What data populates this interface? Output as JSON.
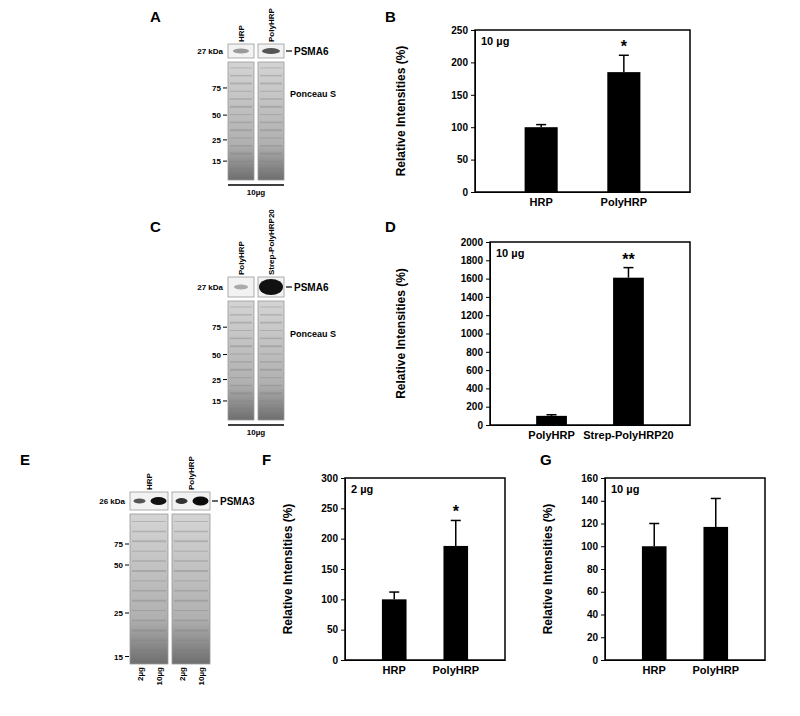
{
  "chart_data": [
    {
      "type": "bar",
      "panel": "B",
      "y_label": "Relative Intensities (%)",
      "categories": [
        "HRP",
        "PolyHRP"
      ],
      "values": [
        100,
        185
      ],
      "error": [
        4,
        26
      ],
      "color": "#000000",
      "ylim": [
        0,
        250
      ],
      "yticks": [
        0,
        50,
        100,
        150,
        200,
        250
      ],
      "annotations": [
        {
          "text": "10 µg"
        },
        {
          "text": "*",
          "x": "PolyHRP"
        }
      ]
    },
    {
      "type": "bar",
      "panel": "D",
      "y_label": "Relative Intensities (%)",
      "categories": [
        "PolyHRP",
        "Strep-PolyHRP20"
      ],
      "values": [
        100,
        1610
      ],
      "error": [
        12,
        110
      ],
      "color": "#000000",
      "ylim": [
        0,
        2000
      ],
      "yticks": [
        0,
        200,
        400,
        600,
        800,
        1000,
        1200,
        1400,
        1600,
        1800,
        2000
      ],
      "annotations": [
        {
          "text": "10 µg"
        },
        {
          "text": "**",
          "x": "Strep-PolyHRP20"
        }
      ]
    },
    {
      "type": "bar",
      "panel": "F",
      "y_label": "Relative Intensities (%)",
      "categories": [
        "HRP",
        "PolyHRP"
      ],
      "values": [
        100,
        188
      ],
      "error": [
        12,
        42
      ],
      "color": "#000000",
      "ylim": [
        0,
        300
      ],
      "yticks": [
        0,
        50,
        100,
        150,
        200,
        250,
        300
      ],
      "annotations": [
        {
          "text": "2 µg"
        },
        {
          "text": "*",
          "x": "PolyHRP"
        }
      ]
    },
    {
      "type": "bar",
      "panel": "G",
      "y_label": "Relative Intensities (%)",
      "categories": [
        "HRP",
        "PolyHRP"
      ],
      "values": [
        100,
        117
      ],
      "error": [
        20,
        25
      ],
      "color": "#000000",
      "ylim": [
        0,
        160
      ],
      "yticks": [
        0,
        20,
        40,
        60,
        80,
        100,
        120,
        140,
        160
      ],
      "annotations": [
        {
          "text": "10 µg"
        }
      ]
    }
  ],
  "blots": [
    {
      "panel": "A",
      "lanes": [
        {
          "label": "HRP"
        },
        {
          "label": "PolyHRP"
        }
      ],
      "marker_size": "27 kDa",
      "protein": "PSMA6",
      "ladder": [
        75,
        50,
        25,
        15
      ],
      "stain": "Ponceau S",
      "load": "10µg"
    },
    {
      "panel": "C",
      "lanes": [
        {
          "label": "PolyHRP"
        },
        {
          "label": "Strep-PolyHRP20"
        }
      ],
      "marker_size": "27 kDa",
      "protein": "PSMA6",
      "ladder": [
        75,
        50,
        25,
        15
      ],
      "stain": "Ponceau S",
      "load": "10µg"
    },
    {
      "panel": "E",
      "lanes": [
        {
          "label": "HRP",
          "loads": [
            "2µg",
            "10µg"
          ]
        },
        {
          "label": "PolyHRP",
          "loads": [
            "2µg",
            "10µg"
          ]
        }
      ],
      "marker_size": "26 kDa",
      "protein": "PSMA3",
      "ladder": [
        75,
        50,
        25,
        15
      ]
    }
  ]
}
